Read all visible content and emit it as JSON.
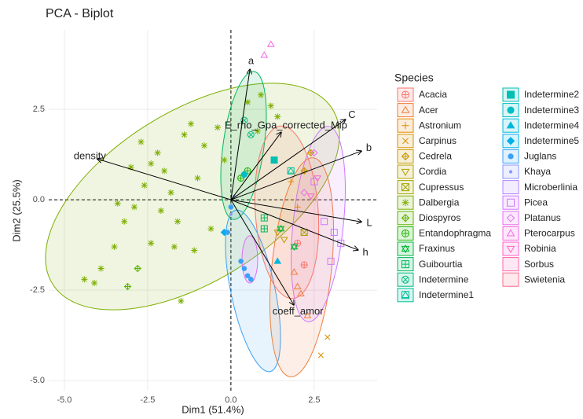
{
  "chart_data": {
    "type": "biplot",
    "title": "PCA - Biplot",
    "x_label": "Dim1 (51.4%)",
    "y_label": "Dim2 (25.5%)",
    "legend_title": "Species",
    "xlim": [
      -5.47,
      4.39
    ],
    "ylim": [
      -5.28,
      4.7
    ],
    "xticks": [
      {
        "value": -5,
        "label": "-5.0"
      },
      {
        "value": -2.5,
        "label": "-2.5"
      },
      {
        "value": 0,
        "label": "0.0"
      },
      {
        "value": 2.5,
        "label": "2.5"
      }
    ],
    "yticks": [
      {
        "value": -5,
        "label": "-5.0"
      },
      {
        "value": -2.5,
        "label": "-2.5"
      },
      {
        "value": 0,
        "label": "0.0"
      },
      {
        "value": 2.5,
        "label": "2.5"
      }
    ],
    "grid": true,
    "variables": [
      {
        "name": "a",
        "x": 0.57,
        "y": 3.61
      },
      {
        "name": "C",
        "x": 3.44,
        "y": 2.22
      },
      {
        "name": "b",
        "x": 3.92,
        "y": 1.35
      },
      {
        "name": "E_rho_Gpa_corrected_Mip",
        "x": 1.51,
        "y": 1.87
      },
      {
        "name": "density",
        "x": -4.01,
        "y": 1.13
      },
      {
        "name": "L",
        "x": 3.92,
        "y": -0.61
      },
      {
        "name": "h",
        "x": 3.82,
        "y": -1.39
      },
      {
        "name": "coeff_amor",
        "x": 1.89,
        "y": -2.91
      }
    ],
    "series": [
      {
        "name": "Acacia",
        "color": "#f8766d",
        "shape": "circle-plus",
        "x": [
          2.0,
          2.2
        ],
        "y": [
          -1.2,
          -1.8
        ]
      },
      {
        "name": "Acer",
        "color": "#f07f3c",
        "shape": "triangle",
        "x": [
          2.0,
          2.1,
          1.9,
          2.3
        ],
        "y": [
          -2.4,
          -2.6,
          -2.0,
          -3.2
        ]
      },
      {
        "name": "Astronium",
        "color": "#e58700",
        "shape": "plus",
        "x": [
          1.8,
          2.0
        ],
        "y": [
          0.5,
          -0.2
        ]
      },
      {
        "name": "Carpinus",
        "color": "#d89000",
        "shape": "x",
        "x": [
          2.7,
          2.9
        ],
        "y": [
          -4.3,
          -3.8
        ]
      },
      {
        "name": "Cedrela",
        "color": "#c99800",
        "shape": "diamond-plus",
        "x": [
          2.4,
          2.2
        ],
        "y": [
          1.3,
          0.8
        ]
      },
      {
        "name": "Cordia",
        "color": "#b79f00",
        "shape": "triangle-down",
        "x": [
          1.4,
          1.6
        ],
        "y": [
          -0.9,
          -1.1
        ]
      },
      {
        "name": "Cupressus",
        "color": "#a3a500",
        "shape": "square-x",
        "x": [
          2.2
        ],
        "y": [
          -0.9
        ]
      },
      {
        "name": "Dalbergia",
        "color": "#7cae00",
        "shape": "asterisk",
        "x": [
          -4.4,
          -4.1,
          -3.9,
          -3.5,
          -3.2,
          -2.9,
          -2.6,
          -2.4,
          -2.2,
          -2.0,
          -1.8,
          -1.6,
          -1.4,
          -1.2,
          -1.0,
          -0.8,
          -0.6,
          -0.4,
          -1.5,
          -1.7,
          -2.1,
          -2.7,
          -3.0,
          0.5,
          0.9,
          1.2,
          0.8,
          1.4,
          -0.2,
          -1.1,
          -3.4,
          -2.4
        ],
        "y": [
          -2.2,
          -2.3,
          -1.9,
          -1.3,
          -0.6,
          -0.2,
          0.4,
          1.0,
          1.3,
          0.8,
          0.2,
          -0.6,
          1.8,
          2.1,
          0.6,
          1.5,
          -0.8,
          2.0,
          -2.8,
          -1.3,
          -0.3,
          1.6,
          0.9,
          2.7,
          2.9,
          2.6,
          1.9,
          2.3,
          1.1,
          -1.4,
          -0.1,
          -1.2
        ]
      },
      {
        "name": "Diospyros",
        "color": "#5bb300",
        "shape": "diamond-plus",
        "x": [
          -2.8,
          -3.1
        ],
        "y": [
          -1.9,
          -2.4
        ]
      },
      {
        "name": "Entandophragma",
        "color": "#1eb400",
        "shape": "circle-plus",
        "x": [
          0.3,
          0.5
        ],
        "y": [
          0.6,
          0.8
        ]
      },
      {
        "name": "Fraxinus",
        "color": "#00b636",
        "shape": "star",
        "x": [
          1.9,
          1.5
        ],
        "y": [
          -1.3,
          -0.8
        ]
      },
      {
        "name": "Guibourtia",
        "color": "#00b95f",
        "shape": "square-plus",
        "x": [
          1.0,
          1.0
        ],
        "y": [
          -0.5,
          -0.8
        ]
      },
      {
        "name": "Indetermine",
        "color": "#00bb7e",
        "shape": "circle-x",
        "x": [
          0.6,
          0.4
        ],
        "y": [
          1.8,
          2.2
        ]
      },
      {
        "name": "Indetermine1",
        "color": "#00bf9a",
        "shape": "square-triangle",
        "x": [
          1.8
        ],
        "y": [
          0.8
        ]
      },
      {
        "name": "Indetermine2",
        "color": "#00bfb3",
        "shape": "filled-square",
        "x": [
          1.3
        ],
        "y": [
          1.1
        ]
      },
      {
        "name": "Indetermine3",
        "color": "#00bdc7",
        "shape": "filled-circle",
        "x": [
          0.4
        ],
        "y": [
          0.7
        ]
      },
      {
        "name": "Indetermine4",
        "color": "#00b8db",
        "shape": "filled-triangle",
        "x": [
          1.4
        ],
        "y": [
          -1.7
        ]
      },
      {
        "name": "Indetermine5",
        "color": "#00afec",
        "shape": "filled-diamond",
        "x": [
          -0.2
        ],
        "y": [
          -0.9
        ]
      },
      {
        "name": "Juglans",
        "color": "#3aa1f8",
        "shape": "dot",
        "x": [
          0.5,
          0.6,
          0.4,
          0.3,
          0.0,
          -0.1
        ],
        "y": [
          -2.1,
          -2.2,
          -1.9,
          -1.7,
          -0.2,
          -0.9
        ]
      },
      {
        "name": "Khaya",
        "color": "#8894ff",
        "shape": "small-dot",
        "x": [
          0.0,
          0.1
        ],
        "y": [
          -0.4,
          0.1
        ]
      },
      {
        "name": "Microberlinia",
        "color": "#b186ff",
        "shape": "circle",
        "x": [
          2.1,
          2.6,
          2.4
        ],
        "y": [
          -1.5,
          -0.3,
          0.3
        ]
      },
      {
        "name": "Picea",
        "color": "#cf78ff",
        "shape": "square",
        "x": [
          3.0,
          3.3,
          2.8,
          3.1,
          2.5
        ],
        "y": [
          -1.7,
          -1.2,
          -0.6,
          -0.9,
          0.5
        ]
      },
      {
        "name": "Platanus",
        "color": "#e46ef3",
        "shape": "diamond",
        "x": [
          2.5,
          2.2
        ],
        "y": [
          1.3,
          0.2
        ]
      },
      {
        "name": "Pterocarpus",
        "color": "#f564e3",
        "shape": "triangle",
        "x": [
          1.0,
          1.2
        ],
        "y": [
          4.0,
          4.3
        ]
      },
      {
        "name": "Robinia",
        "color": "#fc61c9",
        "shape": "triangle-down",
        "x": [
          2.6,
          2.4
        ],
        "y": [
          0.6,
          0.1
        ]
      },
      {
        "name": "Sorbus",
        "color": "#ff64ac",
        "shape": "none",
        "x": [],
        "y": []
      },
      {
        "name": "Swietenia",
        "color": "#fe6d8c",
        "shape": "none",
        "x": [],
        "y": []
      }
    ]
  }
}
